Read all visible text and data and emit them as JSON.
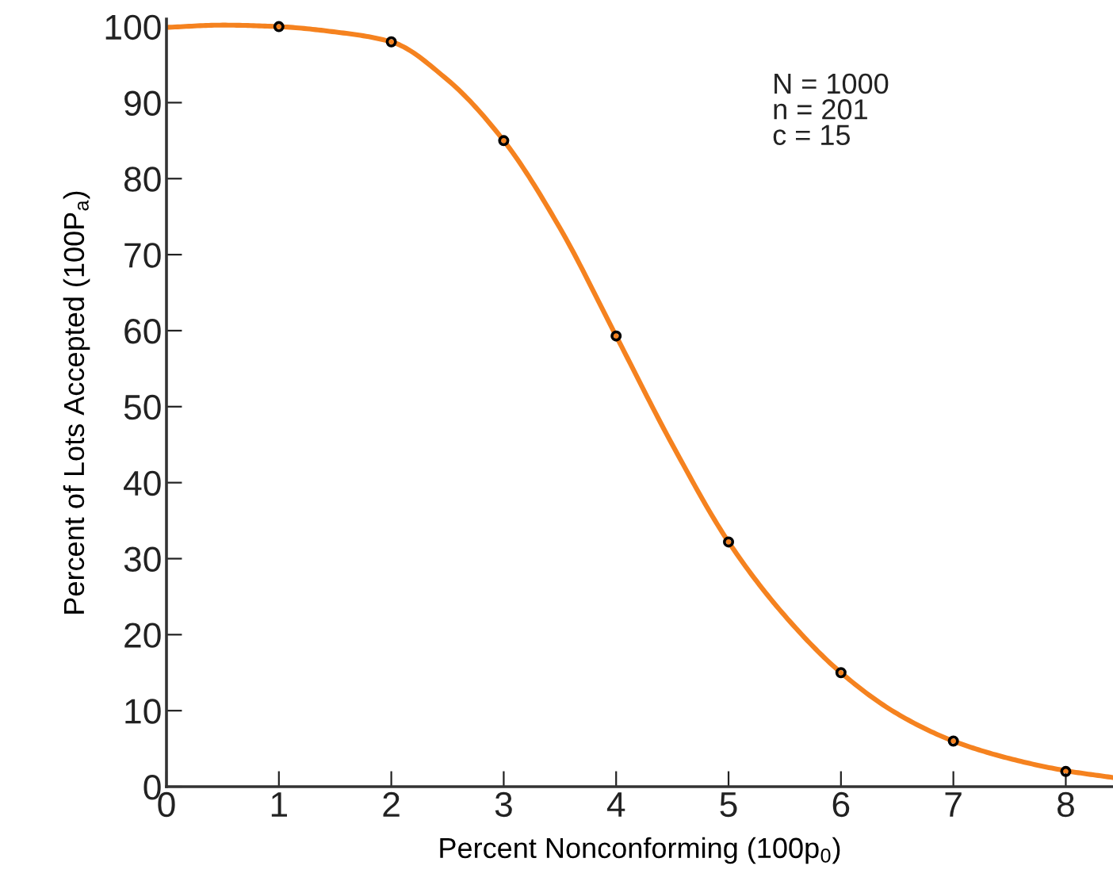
{
  "chart_data": {
    "type": "line",
    "xlabel": "Percent Nonconforming (100p$_{0}$)",
    "ylabel": "Percent of Lots Accepted (100P$_{a}$)",
    "annotations": [
      "N = 1000\nn = 201\nc = 15"
    ],
    "series": [
      {
        "color": "#f5821f",
        "marker": "none",
        "x": [
          0,
          0.5,
          1,
          1.5,
          2,
          2.5,
          3,
          3.5,
          4,
          4.5,
          5,
          5.5,
          6,
          6.5,
          7,
          7.5,
          8,
          8.42
        ],
        "values": [
          99.9,
          100.2,
          100,
          99.3,
          98,
          93,
          85,
          73.5,
          59.3,
          45,
          32.2,
          22.5,
          15,
          9.6,
          6,
          3.7,
          2.1,
          1.2
        ]
      },
      {
        "type": "scatter",
        "color": "#000000",
        "marker": "circle",
        "x": [
          1,
          2,
          3,
          4,
          5,
          6,
          7,
          8
        ],
        "values": [
          100,
          98,
          85,
          59.3,
          32.2,
          15,
          6,
          2
        ]
      }
    ],
    "xlim": [
      0,
      8.42
    ],
    "ylim": [
      0,
      101
    ],
    "xticks": [
      0,
      1,
      2,
      3,
      4,
      5,
      6,
      7,
      8
    ],
    "yticks": [
      0,
      10,
      20,
      30,
      40,
      50,
      60,
      70,
      80,
      90,
      100
    ],
    "grid": false,
    "legend": false
  }
}
